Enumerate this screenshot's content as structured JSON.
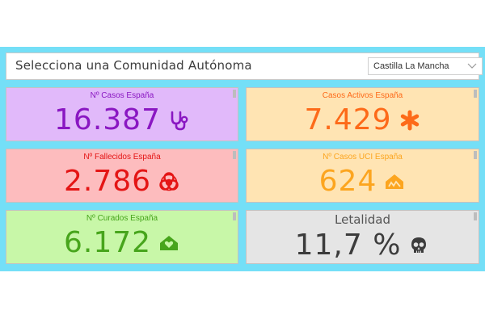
{
  "selector": {
    "title": "Selecciona una Comunidad Autónoma",
    "selected_value": "Castilla La Mancha"
  },
  "cards": {
    "casos": {
      "title": "Nº Casos España",
      "value": "16.387",
      "icon": "stethoscope-icon",
      "bg": "#e1b9fa",
      "color": "#8a17c2"
    },
    "activos": {
      "title": "Casos Activos España",
      "value": "7.429",
      "icon": "asterisk-icon",
      "bg": "#ffe4b3",
      "color": "#fd6a19"
    },
    "fallecidos": {
      "title": "Nº Fallecidos España",
      "value": "2.786",
      "icon": "biohazard-icon",
      "bg": "#fdbcbe",
      "color": "#e41515"
    },
    "uci": {
      "title": "Nº Casos UCI España",
      "value": "624",
      "icon": "house-icon",
      "bg": "#ffe4b3",
      "color": "#fca51f"
    },
    "curados": {
      "title": "Nº Curados España",
      "value": "6.172",
      "icon": "home-heart-icon",
      "bg": "#c8f7a8",
      "color": "#47a51c"
    },
    "letalidad": {
      "title": "Letalidad",
      "value": "11,7 %",
      "icon": "skull-icon",
      "bg": "#e5e5e5",
      "color": "#3c3c3c"
    }
  }
}
